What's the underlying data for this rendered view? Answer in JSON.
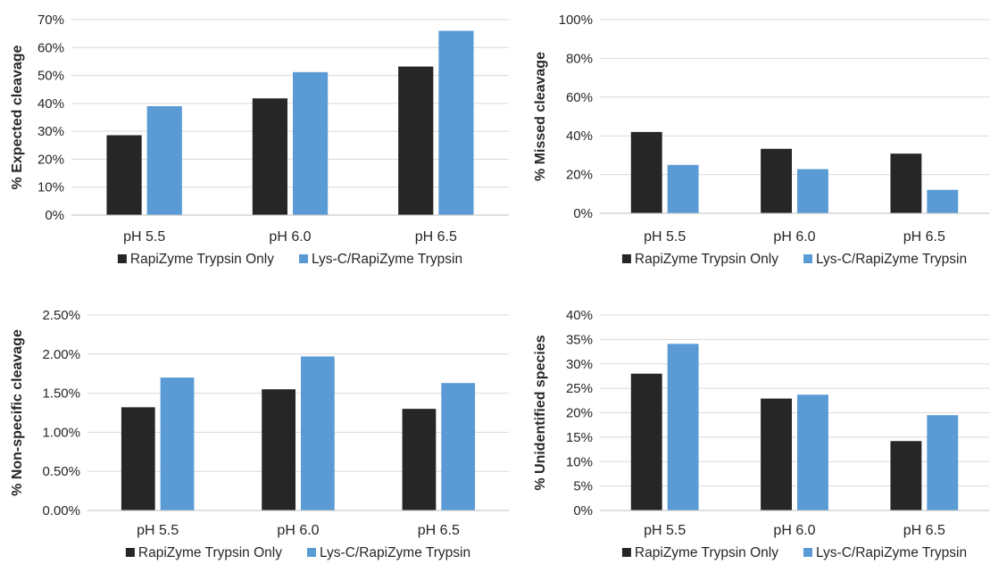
{
  "chart_data": [
    {
      "type": "bar",
      "ylabel": "% Expected cleavage",
      "categories": [
        "pH 5.5",
        "pH 6.0",
        "pH 6.5"
      ],
      "ylim": [
        0,
        70
      ],
      "yticks": [
        0,
        10,
        20,
        30,
        40,
        50,
        60,
        70
      ],
      "ytick_labels": [
        "0%",
        "10%",
        "20%",
        "30%",
        "40%",
        "50%",
        "60%",
        "70%"
      ],
      "grid": true,
      "legend_position": "bottom",
      "series": [
        {
          "name": "RapiZyme Trypsin Only",
          "color": "#262626",
          "values": [
            28.6,
            41.8,
            53.2
          ]
        },
        {
          "name": "Lys-C/RapiZyme Trypsin",
          "color": "#5b9bd5",
          "values": [
            39.0,
            51.2,
            66.0
          ]
        }
      ]
    },
    {
      "type": "bar",
      "ylabel": "% Missed cleavage",
      "categories": [
        "pH 5.5",
        "pH 6.0",
        "pH 6.5"
      ],
      "ylim": [
        0,
        100
      ],
      "yticks": [
        0,
        20,
        40,
        60,
        80,
        100
      ],
      "ytick_labels": [
        "0%",
        "20%",
        "40%",
        "60%",
        "80%",
        "100%"
      ],
      "grid": true,
      "legend_position": "bottom",
      "series": [
        {
          "name": "RapiZyme Trypsin Only",
          "color": "#262626",
          "values": [
            42.0,
            33.3,
            30.8
          ]
        },
        {
          "name": "Lys-C/RapiZyme Trypsin",
          "color": "#5b9bd5",
          "values": [
            25.0,
            22.8,
            12.1
          ]
        }
      ]
    },
    {
      "type": "bar",
      "ylabel": "% Non-specific cleavage",
      "categories": [
        "pH 5.5",
        "pH 6.0",
        "pH 6.5"
      ],
      "ylim": [
        0,
        2.5
      ],
      "yticks": [
        0,
        0.5,
        1.0,
        1.5,
        2.0,
        2.5
      ],
      "ytick_labels": [
        "0.00%",
        "0.50%",
        "1.00%",
        "1.50%",
        "2.00%",
        "2.50%"
      ],
      "grid": true,
      "legend_position": "bottom",
      "series": [
        {
          "name": "RapiZyme Trypsin Only",
          "color": "#262626",
          "values": [
            1.32,
            1.55,
            1.3
          ]
        },
        {
          "name": "Lys-C/RapiZyme Trypsin",
          "color": "#5b9bd5",
          "values": [
            1.7,
            1.97,
            1.63
          ]
        }
      ]
    },
    {
      "type": "bar",
      "ylabel": "% Unidentified species",
      "categories": [
        "pH 5.5",
        "pH 6.0",
        "pH 6.5"
      ],
      "ylim": [
        0,
        40
      ],
      "yticks": [
        0,
        5,
        10,
        15,
        20,
        25,
        30,
        35,
        40
      ],
      "ytick_labels": [
        "0%",
        "5%",
        "10%",
        "15%",
        "20%",
        "25%",
        "30%",
        "35%",
        "40%"
      ],
      "grid": true,
      "legend_position": "bottom",
      "series": [
        {
          "name": "RapiZyme Trypsin Only",
          "color": "#262626",
          "values": [
            28.0,
            22.9,
            14.2
          ]
        },
        {
          "name": "Lys-C/RapiZyme Trypsin",
          "color": "#5b9bd5",
          "values": [
            34.1,
            23.7,
            19.5
          ]
        }
      ]
    }
  ],
  "colors": {
    "grid": "#d9d9d9",
    "axis": "#bfbfbf",
    "text": "#262626"
  }
}
